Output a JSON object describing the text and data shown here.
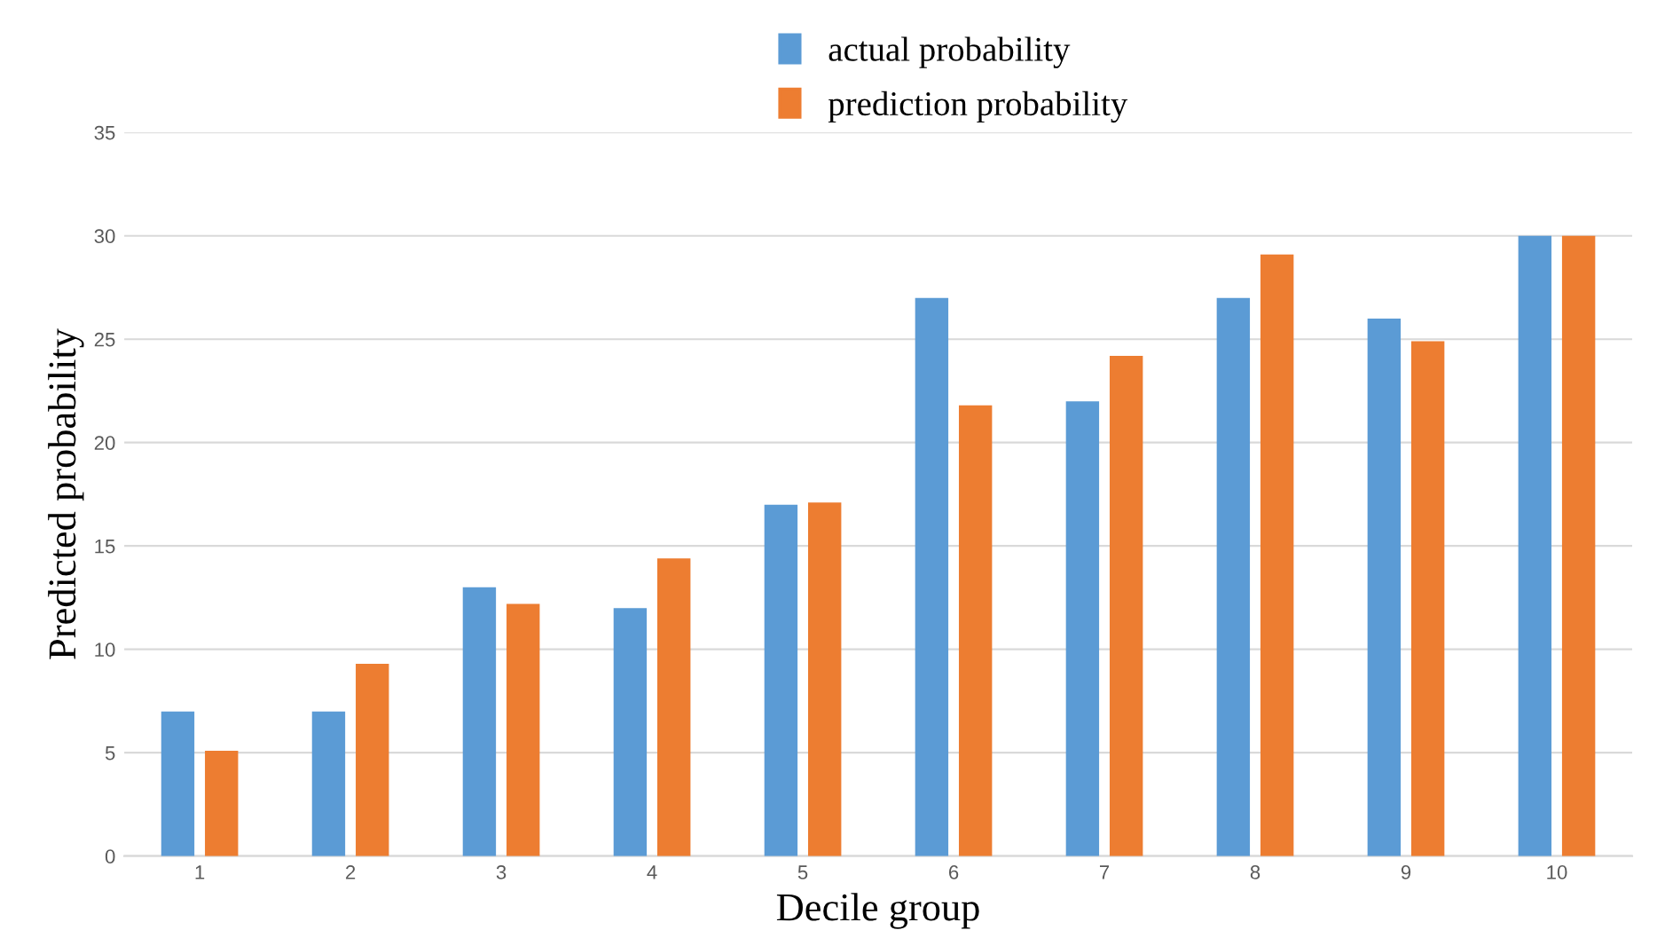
{
  "chart_data": {
    "type": "bar",
    "xlabel": "Decile group",
    "ylabel": "Predicted probability",
    "categories": [
      "1",
      "2",
      "3",
      "4",
      "5",
      "6",
      "7",
      "8",
      "9",
      "10"
    ],
    "series": [
      {
        "name": "actual probability",
        "color": "#5b9bd5",
        "values": [
          7,
          7,
          13,
          12,
          17,
          27,
          22,
          27,
          26,
          30
        ]
      },
      {
        "name": "prediction probability",
        "color": "#ed7d31",
        "values": [
          5.1,
          9.3,
          12.2,
          14.4,
          17.1,
          21.8,
          24.2,
          29.1,
          24.9,
          30
        ]
      }
    ],
    "ylim": [
      0,
      35
    ],
    "yticks": [
      0,
      5,
      10,
      15,
      20,
      25,
      30,
      35
    ],
    "grid": "y",
    "legend": "top"
  }
}
